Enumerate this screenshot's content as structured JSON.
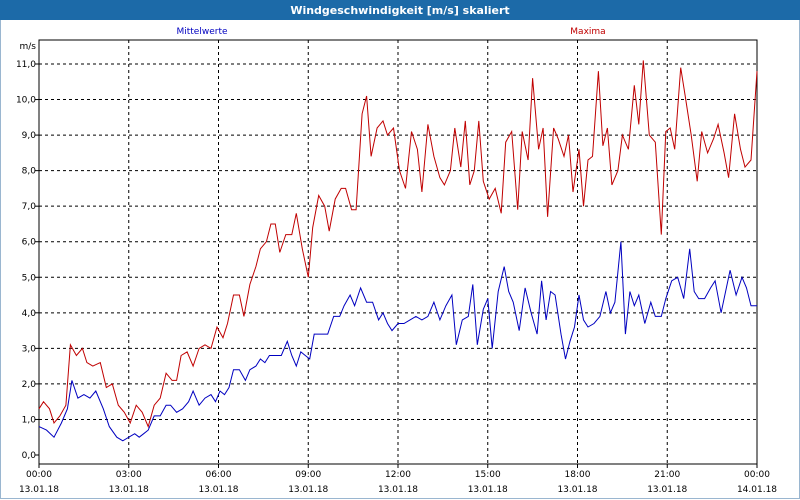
{
  "window": {
    "title": "Windgeschwindigkeit [m/s] skaliert"
  },
  "colors": {
    "mean": "#0000c0",
    "max": "#c00000",
    "titlebar": "#1c6aa8"
  },
  "chart_data": {
    "type": "line",
    "title": "Windgeschwindigkeit [m/s] skaliert",
    "ylabel": "m/s",
    "ylim": [
      0,
      11.5
    ],
    "y_ticks": [
      "0,0",
      "1,0",
      "2,0",
      "3,0",
      "4,0",
      "5,0",
      "6,0",
      "7,0",
      "8,0",
      "9,0",
      "10,0",
      "11,0"
    ],
    "x_ticks": [
      {
        "time": "00:00",
        "date": "13.01.18"
      },
      {
        "time": "03:00",
        "date": "13.01.18"
      },
      {
        "time": "06:00",
        "date": "13.01.18"
      },
      {
        "time": "09:00",
        "date": "13.01.18"
      },
      {
        "time": "12:00",
        "date": "13.01.18"
      },
      {
        "time": "15:00",
        "date": "13.01.18"
      },
      {
        "time": "18:00",
        "date": "13.01.18"
      },
      {
        "time": "21:00",
        "date": "13.01.18"
      },
      {
        "time": "00:00",
        "date": "14.01.18"
      }
    ],
    "grid": true,
    "series": [
      {
        "name": "Mittelwerte",
        "color": "#0000c0",
        "points": [
          [
            0,
            0.8
          ],
          [
            0.25,
            0.7
          ],
          [
            0.5,
            0.5
          ],
          [
            0.75,
            0.9
          ],
          [
            0.95,
            1.3
          ],
          [
            1.1,
            2.1
          ],
          [
            1.3,
            1.6
          ],
          [
            1.5,
            1.7
          ],
          [
            1.7,
            1.6
          ],
          [
            1.9,
            1.8
          ],
          [
            2.15,
            1.3
          ],
          [
            2.35,
            0.8
          ],
          [
            2.6,
            0.5
          ],
          [
            2.8,
            0.4
          ],
          [
            3,
            0.5
          ],
          [
            3.2,
            0.6
          ],
          [
            3.35,
            0.5
          ],
          [
            3.5,
            0.6
          ],
          [
            3.65,
            0.7
          ],
          [
            3.85,
            1.1
          ],
          [
            4.05,
            1.1
          ],
          [
            4.25,
            1.4
          ],
          [
            4.4,
            1.4
          ],
          [
            4.6,
            1.2
          ],
          [
            4.8,
            1.3
          ],
          [
            5,
            1.5
          ],
          [
            5.15,
            1.8
          ],
          [
            5.35,
            1.4
          ],
          [
            5.55,
            1.6
          ],
          [
            5.75,
            1.7
          ],
          [
            5.9,
            1.5
          ],
          [
            6.05,
            1.8
          ],
          [
            6.2,
            1.7
          ],
          [
            6.35,
            1.9
          ],
          [
            6.5,
            2.4
          ],
          [
            6.7,
            2.4
          ],
          [
            6.9,
            2.1
          ],
          [
            7.05,
            2.4
          ],
          [
            7.25,
            2.5
          ],
          [
            7.4,
            2.7
          ],
          [
            7.55,
            2.6
          ],
          [
            7.7,
            2.8
          ],
          [
            7.9,
            2.8
          ],
          [
            8.1,
            2.8
          ],
          [
            8.3,
            3.2
          ],
          [
            8.45,
            2.8
          ],
          [
            8.6,
            2.5
          ],
          [
            8.75,
            2.9
          ],
          [
            8.9,
            2.8
          ],
          [
            9.05,
            2.7
          ],
          [
            9.2,
            3.4
          ],
          [
            9.4,
            3.4
          ],
          [
            9.65,
            3.4
          ],
          [
            9.85,
            3.9
          ],
          [
            10.05,
            3.9
          ],
          [
            10.2,
            4.2
          ],
          [
            10.4,
            4.5
          ],
          [
            10.55,
            4.2
          ],
          [
            10.75,
            4.7
          ],
          [
            10.95,
            4.3
          ],
          [
            11.15,
            4.3
          ],
          [
            11.35,
            3.8
          ],
          [
            11.5,
            4.0
          ],
          [
            11.65,
            3.7
          ],
          [
            11.8,
            3.5
          ],
          [
            12,
            3.7
          ],
          [
            12.2,
            3.7
          ],
          [
            12.4,
            3.8
          ],
          [
            12.6,
            3.9
          ],
          [
            12.8,
            3.8
          ],
          [
            13,
            3.9
          ],
          [
            13.2,
            4.3
          ],
          [
            13.4,
            3.8
          ],
          [
            13.6,
            4.2
          ],
          [
            13.8,
            4.5
          ],
          [
            13.95,
            3.1
          ],
          [
            14.15,
            3.8
          ],
          [
            14.35,
            3.9
          ],
          [
            14.5,
            4.8
          ],
          [
            14.65,
            3.1
          ],
          [
            14.85,
            4.1
          ],
          [
            15,
            4.4
          ],
          [
            15.15,
            3.0
          ],
          [
            15.35,
            4.6
          ],
          [
            15.55,
            5.3
          ],
          [
            15.7,
            4.6
          ],
          [
            15.85,
            4.3
          ],
          [
            16.05,
            3.5
          ],
          [
            16.25,
            4.7
          ],
          [
            16.45,
            4.0
          ],
          [
            16.65,
            3.4
          ],
          [
            16.8,
            4.9
          ],
          [
            16.95,
            3.8
          ],
          [
            17.1,
            4.6
          ],
          [
            17.25,
            4.5
          ],
          [
            17.45,
            3.4
          ],
          [
            17.6,
            2.7
          ],
          [
            17.75,
            3.2
          ],
          [
            17.9,
            3.6
          ],
          [
            18.05,
            4.5
          ],
          [
            18.2,
            3.8
          ],
          [
            18.35,
            3.6
          ],
          [
            18.55,
            3.7
          ],
          [
            18.75,
            3.9
          ],
          [
            18.95,
            4.6
          ],
          [
            19.1,
            4.0
          ],
          [
            19.25,
            4.3
          ],
          [
            19.45,
            6.0
          ],
          [
            19.6,
            3.4
          ],
          [
            19.75,
            4.6
          ],
          [
            19.9,
            4.2
          ],
          [
            20.05,
            4.5
          ],
          [
            20.25,
            3.7
          ],
          [
            20.45,
            4.3
          ],
          [
            20.6,
            3.9
          ],
          [
            20.8,
            3.9
          ],
          [
            20.95,
            4.4
          ],
          [
            21.15,
            4.9
          ],
          [
            21.35,
            5.0
          ],
          [
            21.55,
            4.4
          ],
          [
            21.75,
            5.8
          ],
          [
            21.9,
            4.6
          ],
          [
            22.05,
            4.4
          ],
          [
            22.25,
            4.4
          ],
          [
            22.45,
            4.7
          ],
          [
            22.6,
            4.9
          ],
          [
            22.8,
            4.0
          ],
          [
            22.95,
            4.6
          ],
          [
            23.1,
            5.2
          ],
          [
            23.3,
            4.5
          ],
          [
            23.5,
            5.0
          ],
          [
            23.65,
            4.7
          ],
          [
            23.8,
            4.2
          ],
          [
            24,
            4.2
          ]
        ]
      },
      {
        "name": "Maxima",
        "color": "#c00000",
        "points": [
          [
            0,
            1.3
          ],
          [
            0.15,
            1.5
          ],
          [
            0.35,
            1.3
          ],
          [
            0.5,
            0.9
          ],
          [
            0.7,
            1.1
          ],
          [
            0.9,
            1.4
          ],
          [
            1.05,
            3.1
          ],
          [
            1.25,
            2.8
          ],
          [
            1.45,
            3.0
          ],
          [
            1.6,
            2.6
          ],
          [
            1.8,
            2.5
          ],
          [
            2.05,
            2.6
          ],
          [
            2.25,
            1.9
          ],
          [
            2.45,
            2.0
          ],
          [
            2.65,
            1.4
          ],
          [
            2.85,
            1.2
          ],
          [
            3.05,
            0.9
          ],
          [
            3.25,
            1.4
          ],
          [
            3.45,
            1.2
          ],
          [
            3.65,
            0.8
          ],
          [
            3.85,
            1.4
          ],
          [
            4.05,
            1.6
          ],
          [
            4.25,
            2.3
          ],
          [
            4.45,
            2.1
          ],
          [
            4.6,
            2.1
          ],
          [
            4.75,
            2.8
          ],
          [
            4.95,
            2.9
          ],
          [
            5.15,
            2.5
          ],
          [
            5.35,
            3.0
          ],
          [
            5.55,
            3.1
          ],
          [
            5.75,
            3.0
          ],
          [
            5.95,
            3.6
          ],
          [
            6.15,
            3.3
          ],
          [
            6.3,
            3.7
          ],
          [
            6.5,
            4.5
          ],
          [
            6.7,
            4.5
          ],
          [
            6.85,
            3.9
          ],
          [
            7.05,
            4.8
          ],
          [
            7.25,
            5.3
          ],
          [
            7.4,
            5.8
          ],
          [
            7.6,
            6.0
          ],
          [
            7.75,
            6.5
          ],
          [
            7.9,
            6.5
          ],
          [
            8.05,
            5.7
          ],
          [
            8.25,
            6.2
          ],
          [
            8.45,
            6.2
          ],
          [
            8.6,
            6.8
          ],
          [
            8.8,
            5.8
          ],
          [
            9.0,
            5.0
          ],
          [
            9.15,
            6.4
          ],
          [
            9.35,
            7.3
          ],
          [
            9.55,
            7.0
          ],
          [
            9.7,
            6.3
          ],
          [
            9.9,
            7.2
          ],
          [
            10.1,
            7.5
          ],
          [
            10.25,
            7.5
          ],
          [
            10.45,
            6.9
          ],
          [
            10.6,
            6.9
          ],
          [
            10.8,
            9.6
          ],
          [
            10.95,
            10.1
          ],
          [
            11.1,
            8.4
          ],
          [
            11.3,
            9.2
          ],
          [
            11.5,
            9.4
          ],
          [
            11.65,
            9.0
          ],
          [
            11.85,
            9.2
          ],
          [
            12.05,
            8.0
          ],
          [
            12.25,
            7.5
          ],
          [
            12.45,
            9.1
          ],
          [
            12.65,
            8.6
          ],
          [
            12.8,
            7.4
          ],
          [
            13.0,
            9.3
          ],
          [
            13.2,
            8.4
          ],
          [
            13.4,
            7.8
          ],
          [
            13.55,
            7.6
          ],
          [
            13.75,
            8.0
          ],
          [
            13.9,
            9.2
          ],
          [
            14.1,
            8.1
          ],
          [
            14.25,
            9.4
          ],
          [
            14.4,
            7.6
          ],
          [
            14.55,
            8.0
          ],
          [
            14.7,
            9.4
          ],
          [
            14.85,
            7.7
          ],
          [
            15.05,
            7.2
          ],
          [
            15.25,
            7.5
          ],
          [
            15.45,
            6.8
          ],
          [
            15.6,
            8.8
          ],
          [
            15.8,
            9.1
          ],
          [
            16.0,
            6.9
          ],
          [
            16.15,
            9.1
          ],
          [
            16.35,
            8.3
          ],
          [
            16.5,
            10.6
          ],
          [
            16.7,
            8.6
          ],
          [
            16.85,
            9.2
          ],
          [
            17.0,
            6.7
          ],
          [
            17.2,
            9.2
          ],
          [
            17.35,
            8.9
          ],
          [
            17.55,
            8.4
          ],
          [
            17.7,
            9.0
          ],
          [
            17.85,
            7.4
          ],
          [
            18.05,
            8.6
          ],
          [
            18.2,
            7.0
          ],
          [
            18.35,
            8.3
          ],
          [
            18.5,
            8.4
          ],
          [
            18.7,
            10.8
          ],
          [
            18.85,
            8.7
          ],
          [
            19.0,
            9.2
          ],
          [
            19.15,
            7.6
          ],
          [
            19.35,
            8.0
          ],
          [
            19.5,
            9.0
          ],
          [
            19.7,
            8.6
          ],
          [
            19.9,
            10.4
          ],
          [
            20.05,
            9.3
          ],
          [
            20.2,
            11.1
          ],
          [
            20.4,
            9.0
          ],
          [
            20.6,
            8.8
          ],
          [
            20.8,
            6.2
          ],
          [
            20.95,
            9.1
          ],
          [
            21.1,
            9.2
          ],
          [
            21.25,
            8.6
          ],
          [
            21.45,
            10.9
          ],
          [
            21.6,
            10.1
          ],
          [
            21.8,
            9.0
          ],
          [
            22.0,
            7.7
          ],
          [
            22.15,
            9.1
          ],
          [
            22.35,
            8.5
          ],
          [
            22.55,
            8.9
          ],
          [
            22.7,
            9.3
          ],
          [
            22.9,
            8.5
          ],
          [
            23.05,
            7.8
          ],
          [
            23.25,
            9.6
          ],
          [
            23.45,
            8.6
          ],
          [
            23.6,
            8.1
          ],
          [
            23.8,
            8.3
          ],
          [
            24.0,
            10.8
          ]
        ]
      }
    ]
  }
}
